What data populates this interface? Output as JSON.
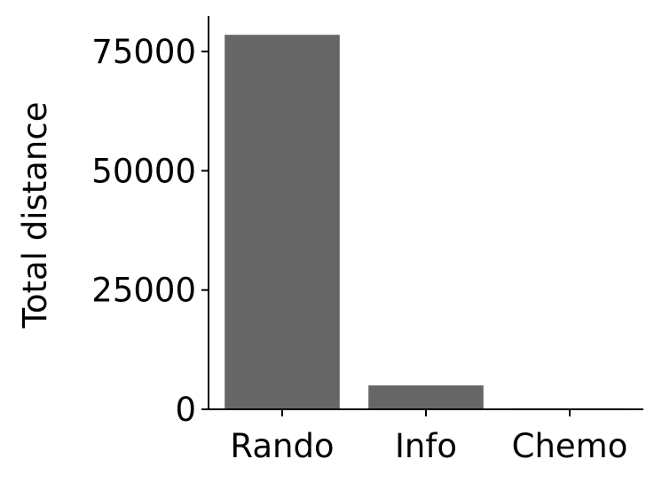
{
  "chart_data": {
    "type": "bar",
    "title": "",
    "xlabel": "",
    "ylabel": "Total distance",
    "categories": [
      "Rando",
      "Info",
      "Chemo"
    ],
    "values": [
      78500,
      5000,
      200
    ],
    "ylim": [
      0,
      82000
    ],
    "yticks": [
      0,
      25000,
      50000,
      75000
    ],
    "ytick_labels": [
      "0",
      "25000",
      "50000",
      "75000"
    ],
    "bar_color": "#666666",
    "axis_color": "#000000",
    "grid": false,
    "legend": "none",
    "spines": "left-bottom"
  }
}
